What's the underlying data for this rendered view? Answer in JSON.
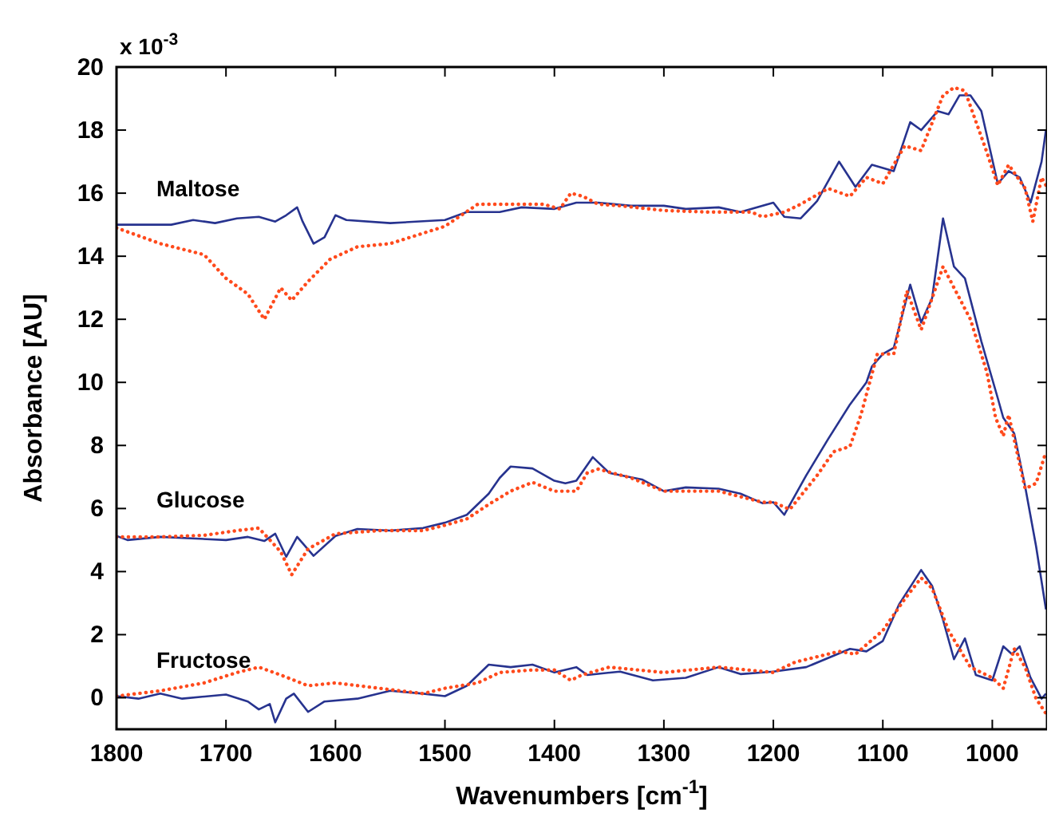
{
  "chart_data": {
    "type": "line",
    "xlabel": "Wavenumbers [cm$^{-1}$]",
    "ylabel": "Absorbance [AU]",
    "xlim": [
      1800,
      950
    ],
    "ylim": [
      -1,
      20
    ],
    "xticks": [
      1800,
      1700,
      1600,
      1500,
      1400,
      1300,
      1200,
      1100,
      1000
    ],
    "yticks": [
      0,
      2,
      4,
      6,
      8,
      10,
      12,
      14,
      16,
      18,
      20
    ],
    "grid": false,
    "marker": "none",
    "annotations": [
      "x 10$^{-3}$",
      "Maltose",
      "Glucose",
      "Fructose"
    ],
    "series": [
      {
        "color": "#27338f",
        "line_style": "solid",
        "x": [
          1800,
          1775,
          1750,
          1730,
          1710,
          1690,
          1670,
          1655,
          1645,
          1635,
          1630,
          1620,
          1610,
          1600,
          1590,
          1550,
          1500,
          1480,
          1450,
          1430,
          1400,
          1380,
          1360,
          1330,
          1300,
          1280,
          1250,
          1230,
          1200,
          1190,
          1175,
          1160,
          1140,
          1125,
          1110,
          1090,
          1075,
          1065,
          1050,
          1040,
          1030,
          1020,
          1010,
          995,
          985,
          975,
          965,
          955,
          951
        ],
        "values": [
          15.0,
          15.0,
          15.0,
          15.15,
          15.05,
          15.2,
          15.25,
          15.1,
          15.3,
          15.55,
          15.1,
          14.4,
          14.6,
          15.3,
          15.15,
          15.05,
          15.15,
          15.4,
          15.4,
          15.55,
          15.5,
          15.7,
          15.7,
          15.6,
          15.6,
          15.5,
          15.55,
          15.4,
          15.7,
          15.25,
          15.2,
          15.75,
          17.0,
          16.2,
          16.9,
          16.7,
          18.25,
          18.0,
          18.6,
          18.5,
          19.1,
          19.1,
          18.6,
          16.3,
          16.7,
          16.5,
          15.7,
          17.0,
          18.0
        ]
      },
      {
        "color": "#ff4a1c",
        "line_style": "dotted",
        "x": [
          1800,
          1760,
          1720,
          1700,
          1680,
          1665,
          1650,
          1640,
          1625,
          1605,
          1580,
          1550,
          1500,
          1470,
          1440,
          1410,
          1395,
          1385,
          1374,
          1360,
          1340,
          1300,
          1260,
          1220,
          1210,
          1190,
          1175,
          1150,
          1130,
          1115,
          1100,
          1080,
          1065,
          1045,
          1035,
          1025,
          1005,
          995,
          985,
          970,
          963,
          955,
          951
        ],
        "values": [
          14.9,
          14.4,
          14.05,
          13.3,
          12.8,
          12.0,
          13.0,
          12.6,
          13.2,
          13.9,
          14.3,
          14.4,
          14.95,
          15.65,
          15.65,
          15.65,
          15.5,
          16.0,
          15.9,
          15.65,
          15.6,
          15.45,
          15.4,
          15.4,
          15.25,
          15.4,
          15.65,
          16.15,
          15.9,
          16.5,
          16.3,
          17.5,
          17.35,
          19.1,
          19.35,
          19.25,
          17.3,
          16.25,
          16.9,
          16.15,
          15.1,
          16.5,
          16.25
        ]
      },
      {
        "color": "#27338f",
        "line_style": "solid",
        "x": [
          1800,
          1790,
          1760,
          1700,
          1680,
          1665,
          1655,
          1645,
          1635,
          1620,
          1600,
          1580,
          1550,
          1520,
          1500,
          1480,
          1460,
          1450,
          1440,
          1420,
          1400,
          1390,
          1380,
          1365,
          1350,
          1320,
          1300,
          1280,
          1250,
          1230,
          1210,
          1200,
          1190,
          1170,
          1150,
          1130,
          1115,
          1110,
          1100,
          1090,
          1075,
          1065,
          1055,
          1045,
          1035,
          1025,
          1010,
          995,
          990,
          980,
          970,
          960,
          951
        ],
        "values": [
          5.13,
          5.0,
          5.1,
          5.0,
          5.1,
          4.97,
          5.2,
          4.47,
          5.1,
          4.5,
          5.13,
          5.35,
          5.3,
          5.38,
          5.55,
          5.8,
          6.47,
          6.97,
          7.33,
          7.27,
          6.88,
          6.8,
          6.88,
          7.63,
          7.13,
          6.92,
          6.55,
          6.67,
          6.63,
          6.47,
          6.17,
          6.2,
          5.8,
          7.05,
          8.2,
          9.3,
          10.0,
          10.5,
          10.9,
          11.1,
          13.1,
          11.9,
          12.67,
          15.2,
          13.67,
          13.3,
          11.3,
          9.5,
          8.88,
          8.38,
          6.7,
          4.8,
          2.8
        ]
      },
      {
        "color": "#ff4a1c",
        "line_style": "dotted",
        "x": [
          1800,
          1760,
          1720,
          1690,
          1670,
          1650,
          1640,
          1625,
          1600,
          1560,
          1520,
          1500,
          1480,
          1460,
          1440,
          1420,
          1400,
          1380,
          1370,
          1360,
          1330,
          1300,
          1250,
          1210,
          1200,
          1185,
          1160,
          1145,
          1130,
          1120,
          1105,
          1090,
          1078,
          1065,
          1045,
          1035,
          1020,
          1005,
          997,
          990,
          985,
          970,
          960,
          951
        ],
        "values": [
          5.1,
          5.1,
          5.15,
          5.3,
          5.38,
          4.63,
          3.9,
          4.72,
          5.2,
          5.3,
          5.3,
          5.47,
          5.67,
          6.13,
          6.55,
          6.83,
          6.55,
          6.55,
          7.13,
          7.25,
          6.97,
          6.55,
          6.55,
          6.2,
          6.2,
          5.97,
          7.05,
          7.8,
          7.97,
          8.97,
          10.9,
          10.9,
          12.9,
          11.67,
          13.67,
          13.0,
          12.0,
          10.33,
          8.88,
          8.3,
          8.97,
          6.63,
          6.8,
          7.8
        ]
      },
      {
        "color": "#27338f",
        "line_style": "solid",
        "x": [
          1800,
          1780,
          1760,
          1740,
          1700,
          1680,
          1670,
          1660,
          1655,
          1645,
          1638,
          1625,
          1610,
          1580,
          1550,
          1520,
          1500,
          1480,
          1460,
          1440,
          1420,
          1400,
          1380,
          1370,
          1340,
          1310,
          1280,
          1250,
          1230,
          1200,
          1170,
          1130,
          1115,
          1100,
          1085,
          1065,
          1055,
          1045,
          1035,
          1025,
          1015,
          1000,
          990,
          982,
          975,
          965,
          955,
          951
        ],
        "values": [
          0.05,
          -0.03,
          0.13,
          -0.03,
          0.1,
          -0.12,
          -0.37,
          -0.2,
          -0.78,
          -0.03,
          0.13,
          -0.45,
          -0.12,
          -0.03,
          0.22,
          0.13,
          0.05,
          0.38,
          1.05,
          0.97,
          1.05,
          0.8,
          0.97,
          0.72,
          0.83,
          0.55,
          0.63,
          0.97,
          0.75,
          0.83,
          0.97,
          1.55,
          1.47,
          1.8,
          2.97,
          4.05,
          3.55,
          2.47,
          1.22,
          1.88,
          0.72,
          0.55,
          1.63,
          1.38,
          1.63,
          0.63,
          -0.03,
          0.13
        ]
      },
      {
        "color": "#ff4a1c",
        "line_style": "dotted",
        "x": [
          1800,
          1760,
          1720,
          1690,
          1670,
          1650,
          1625,
          1600,
          1560,
          1520,
          1500,
          1470,
          1450,
          1420,
          1400,
          1385,
          1375,
          1350,
          1300,
          1250,
          1200,
          1180,
          1140,
          1125,
          1100,
          1080,
          1065,
          1055,
          1040,
          1020,
          1000,
          990,
          980,
          970,
          960,
          951
        ],
        "values": [
          0.05,
          0.22,
          0.47,
          0.8,
          0.97,
          0.72,
          0.38,
          0.47,
          0.3,
          0.13,
          0.3,
          0.47,
          0.8,
          0.88,
          0.88,
          0.55,
          0.72,
          0.97,
          0.8,
          0.97,
          0.8,
          1.13,
          1.47,
          1.38,
          2.13,
          3.13,
          3.8,
          3.47,
          2.13,
          0.97,
          0.63,
          0.3,
          1.55,
          0.97,
          -0.03,
          -0.5
        ]
      }
    ]
  }
}
